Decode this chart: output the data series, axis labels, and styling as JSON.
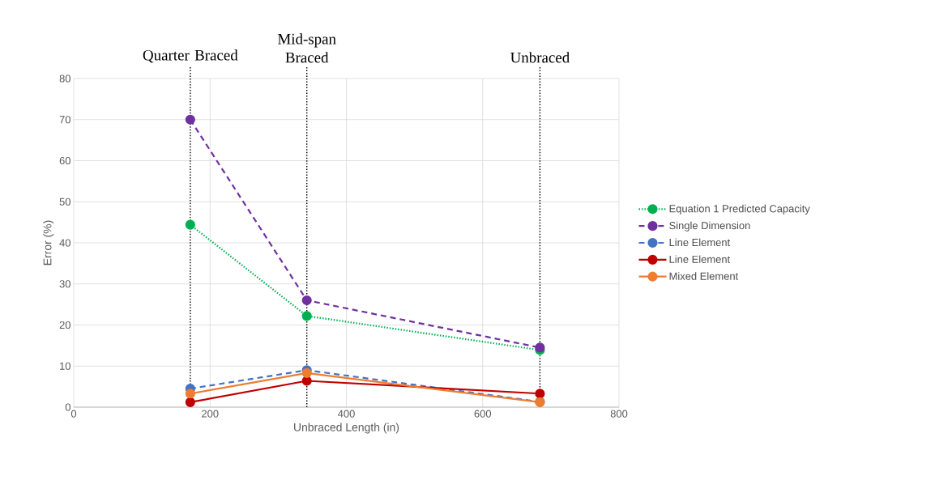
{
  "chart_data": {
    "type": "line",
    "xlabel": "Unbraced Length (in)",
    "ylabel": "Error (%)",
    "x": [
      171,
      342,
      684
    ],
    "series": [
      {
        "name": "Equation 1 Predicted Capacity",
        "color": "#00b050",
        "line_style": "dotted",
        "values": [
          44.4,
          22.2,
          13.9
        ]
      },
      {
        "name": "Single Dimension",
        "color": "#7030a0",
        "line_style": "dashed",
        "values": [
          70,
          26,
          14.5
        ]
      },
      {
        "name": "Line Element",
        "color": "#4472c4",
        "line_style": "dashed",
        "values": [
          4.5,
          9,
          1.3
        ]
      },
      {
        "name": "Line Element",
        "color": "#c00000",
        "line_style": "solid",
        "values": [
          1.2,
          6.4,
          3.3
        ]
      },
      {
        "name": "Mixed Element",
        "color": "#ed7d31",
        "line_style": "solid",
        "values": [
          3.3,
          8.3,
          1.2
        ]
      }
    ],
    "xlim": [
      0,
      800
    ],
    "xticks": [
      0,
      200,
      400,
      600,
      800
    ],
    "ylim": [
      0,
      80
    ],
    "yticks": [
      0,
      10,
      20,
      30,
      40,
      50,
      60,
      70,
      80
    ],
    "ref_lines": [
      {
        "axis": "x",
        "value": 171,
        "label": "Quarter Braced",
        "color": "#000000",
        "line_style": "dotted"
      },
      {
        "axis": "x",
        "value": 342,
        "label": "Mid-span Braced",
        "color": "#000000",
        "line_style": "dotted"
      },
      {
        "axis": "x",
        "value": 684,
        "label": "Unbraced",
        "color": "#000000",
        "line_style": "dotted"
      }
    ],
    "grid": true,
    "legend": "right",
    "marker": "circle"
  }
}
